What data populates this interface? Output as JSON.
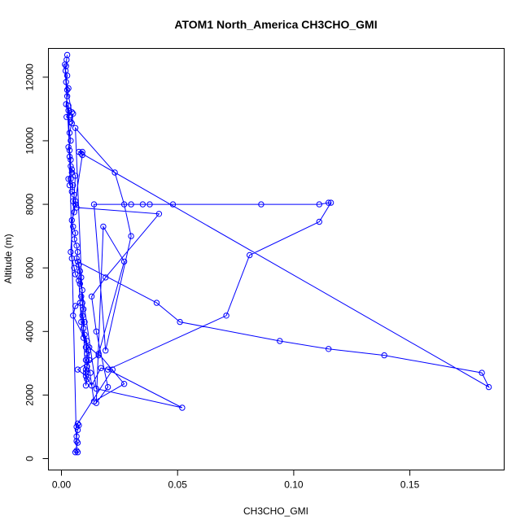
{
  "chart_data": {
    "type": "scatter",
    "title": "ATOM1 North_America CH3CHO_GMI",
    "xlabel": "CH3CHO_GMI",
    "ylabel": "Altitude (m)",
    "xlim": [
      0,
      0.185
    ],
    "ylim": [
      0,
      12700
    ],
    "xticks": [
      0,
      0.05,
      0.1,
      0.15
    ],
    "xtick_labels": [
      "0.00",
      "0.05",
      "0.10",
      "0.15"
    ],
    "yticks": [
      0,
      2000,
      4000,
      6000,
      8000,
      10000,
      12000
    ],
    "ytick_labels": [
      "0",
      "2000",
      "4000",
      "6000",
      "8000",
      "10000",
      "12000"
    ],
    "grid": false,
    "legend": "none",
    "series_color": "#0000ff",
    "marker": "open-circle",
    "connected": true,
    "points": [
      [
        0.0025,
        12700
      ],
      [
        0.0022,
        12550
      ],
      [
        0.002,
        12350
      ],
      [
        0.0018,
        12200
      ],
      [
        0.0025,
        12050
      ],
      [
        0.002,
        11850
      ],
      [
        0.003,
        11650
      ],
      [
        0.0025,
        11400
      ],
      [
        0.002,
        11150
      ],
      [
        0.003,
        10950
      ],
      [
        0.0022,
        10750
      ],
      [
        0.004,
        10600
      ],
      [
        0.005,
        10850
      ],
      [
        0.0045,
        10550
      ],
      [
        0.0035,
        10250
      ],
      [
        0.004,
        10000
      ],
      [
        0.003,
        9800
      ],
      [
        0.0035,
        9500
      ],
      [
        0.004,
        9200
      ],
      [
        0.0045,
        9000
      ],
      [
        0.004,
        8800
      ],
      [
        0.005,
        8600
      ],
      [
        0.0045,
        8400
      ],
      [
        0.0055,
        8300
      ],
      [
        0.005,
        8100
      ],
      [
        0.006,
        8000
      ],
      [
        0.0055,
        7750
      ],
      [
        0.0045,
        7500
      ],
      [
        0.005,
        7300
      ],
      [
        0.006,
        7100
      ],
      [
        0.0055,
        6900
      ],
      [
        0.0065,
        6700
      ],
      [
        0.007,
        6500
      ],
      [
        0.0065,
        6300
      ],
      [
        0.0075,
        6100
      ],
      [
        0.008,
        5900
      ],
      [
        0.0085,
        5700
      ],
      [
        0.008,
        5500
      ],
      [
        0.009,
        5300
      ],
      [
        0.0085,
        5100
      ],
      [
        0.009,
        4900
      ],
      [
        0.0095,
        4700
      ],
      [
        0.009,
        4500
      ],
      [
        0.01,
        4300
      ],
      [
        0.0095,
        4100
      ],
      [
        0.01,
        3900
      ],
      [
        0.011,
        3700
      ],
      [
        0.0105,
        3500
      ],
      [
        0.011,
        3300
      ],
      [
        0.0105,
        3100
      ],
      [
        0.011,
        2900
      ],
      [
        0.0105,
        2700
      ],
      [
        0.011,
        2500
      ],
      [
        0.0105,
        2300
      ],
      [
        0.006,
        10400
      ],
      [
        0.023,
        9000
      ],
      [
        0.027,
        8000
      ],
      [
        0.03,
        7000
      ],
      [
        0.019,
        3400
      ],
      [
        0.014,
        8000
      ],
      [
        0.03,
        8000
      ],
      [
        0.035,
        8000
      ],
      [
        0.038,
        8000
      ],
      [
        0.048,
        8000
      ],
      [
        0.086,
        8000
      ],
      [
        0.111,
        8000
      ],
      [
        0.115,
        8050
      ],
      [
        0.116,
        8050
      ],
      [
        0.111,
        7450
      ],
      [
        0.081,
        6400
      ],
      [
        0.071,
        4500
      ],
      [
        0.02,
        2800
      ],
      [
        0.052,
        1600
      ],
      [
        0.015,
        2200
      ],
      [
        0.007,
        6200
      ],
      [
        0.041,
        4900
      ],
      [
        0.051,
        4300
      ],
      [
        0.094,
        3700
      ],
      [
        0.115,
        3450
      ],
      [
        0.139,
        3250
      ],
      [
        0.181,
        2700
      ],
      [
        0.184,
        2250
      ],
      [
        0.0075,
        9650
      ],
      [
        0.009,
        9650
      ],
      [
        0.0085,
        9600
      ],
      [
        0.009,
        9550
      ],
      [
        0.006,
        8100
      ],
      [
        0.0065,
        7900
      ],
      [
        0.042,
        7700
      ],
      [
        0.019,
        5700
      ],
      [
        0.013,
        5100
      ],
      [
        0.015,
        4000
      ],
      [
        0.02,
        2250
      ],
      [
        0.015,
        1750
      ],
      [
        0.018,
        7300
      ],
      [
        0.027,
        6200
      ],
      [
        0.016,
        3300
      ],
      [
        0.027,
        2350
      ],
      [
        0.014,
        1800
      ],
      [
        0.008,
        4900
      ],
      [
        0.006,
        4800
      ],
      [
        0.005,
        4500
      ],
      [
        0.012,
        3500
      ],
      [
        0.016,
        3250
      ],
      [
        0.007,
        2800
      ],
      [
        0.0105,
        2600
      ],
      [
        0.013,
        2300
      ],
      [
        0.017,
        2850
      ],
      [
        0.022,
        2800
      ],
      [
        0.007,
        1100
      ],
      [
        0.0065,
        1000
      ],
      [
        0.0075,
        1050
      ],
      [
        0.007,
        900
      ],
      [
        0.0065,
        700
      ],
      [
        0.0065,
        550
      ],
      [
        0.007,
        500
      ],
      [
        0.006,
        200
      ],
      [
        0.007,
        200
      ],
      [
        0.0065,
        250
      ],
      [
        0.003,
        11100
      ],
      [
        0.0035,
        10800
      ],
      [
        0.0045,
        10900
      ],
      [
        0.0025,
        11600
      ],
      [
        0.0015,
        12400
      ],
      [
        0.0035,
        9700
      ],
      [
        0.004,
        9400
      ],
      [
        0.0035,
        8600
      ],
      [
        0.003,
        8800
      ],
      [
        0.0045,
        9100
      ],
      [
        0.006,
        8900
      ],
      [
        0.004,
        6500
      ],
      [
        0.0045,
        6300
      ],
      [
        0.0055,
        6000
      ],
      [
        0.006,
        5800
      ],
      [
        0.0075,
        5600
      ],
      [
        0.0085,
        4300
      ],
      [
        0.0095,
        3800
      ],
      [
        0.0115,
        3400
      ],
      [
        0.012,
        3100
      ],
      [
        0.0105,
        2800
      ],
      [
        0.0125,
        2700
      ]
    ]
  }
}
